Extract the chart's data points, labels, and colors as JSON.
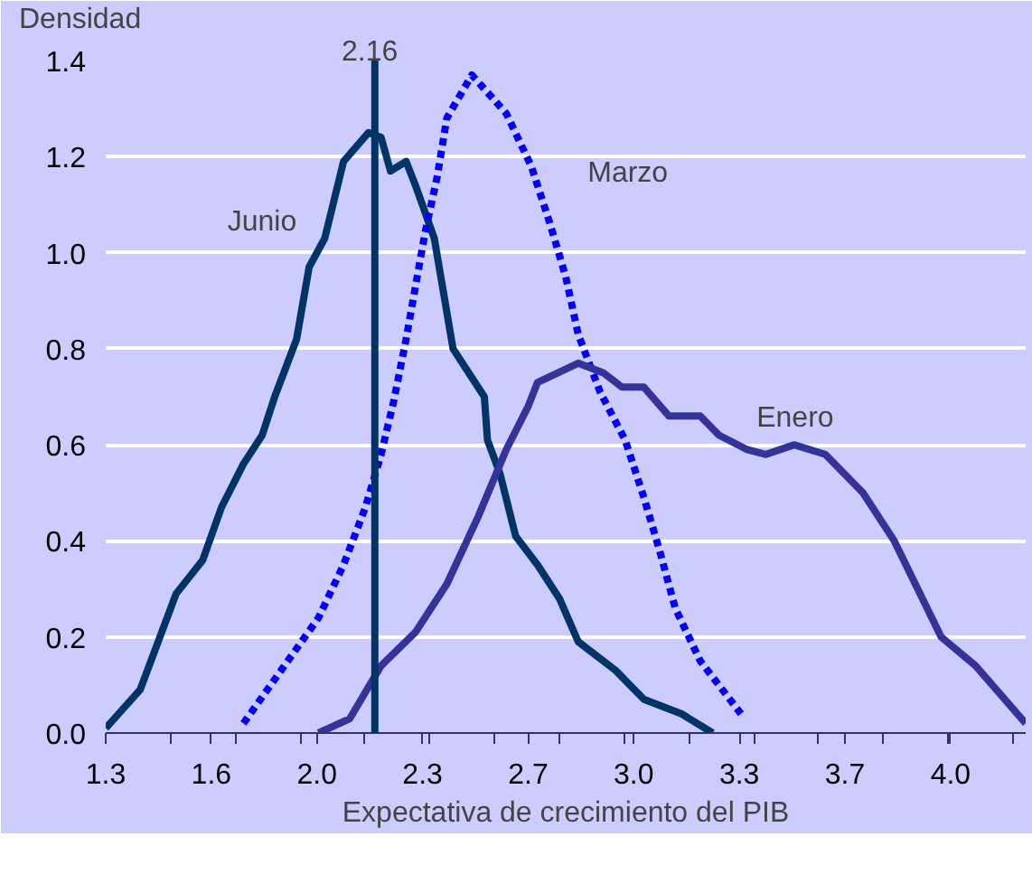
{
  "chart_data": {
    "type": "line",
    "ylabel": "Densidad",
    "xlabel": "Expectativa de crecimiento del PIB",
    "xlim": [
      1.3,
      4.24
    ],
    "ylim": [
      0,
      1.4
    ],
    "xticks": [
      {
        "value": 1.3,
        "label": "1.3"
      },
      {
        "value": 1.6375,
        "label": "1.6"
      },
      {
        "value": 1.975,
        "label": "2.0"
      },
      {
        "value": 2.3125,
        "label": "2.3"
      },
      {
        "value": 2.65,
        "label": "2.7"
      },
      {
        "value": 2.9875,
        "label": "3.0"
      },
      {
        "value": 3.325,
        "label": "3.3"
      },
      {
        "value": 3.6625,
        "label": "3.7"
      },
      {
        "value": 4.0,
        "label": "4.0"
      },
      {
        "value": 1.507,
        "label": null
      },
      {
        "value": 1.714,
        "label": null
      },
      {
        "value": 1.921,
        "label": null
      },
      {
        "value": 2.128,
        "label": null
      },
      {
        "value": 2.335,
        "label": null
      },
      {
        "value": 2.543,
        "label": null
      },
      {
        "value": 2.75,
        "label": null
      },
      {
        "value": 2.957,
        "label": null
      },
      {
        "value": 3.164,
        "label": null
      },
      {
        "value": 3.371,
        "label": null
      },
      {
        "value": 3.578,
        "label": null
      },
      {
        "value": 3.785,
        "label": null
      },
      {
        "value": 3.992,
        "label": null
      },
      {
        "value": 4.199,
        "label": null
      }
    ],
    "yticks": [
      {
        "value": 0,
        "label": "0.0"
      },
      0.2,
      0.4,
      0.6,
      0.8,
      {
        "value": 1.0,
        "label": "1.0"
      },
      1.2,
      1.4
    ],
    "grid": "y",
    "series": [
      {
        "name": "Junio",
        "color": "#003366",
        "line_style": "solid",
        "x": [
          1.3,
          1.41,
          1.525,
          1.61,
          1.67,
          1.74,
          1.8,
          1.84,
          1.91,
          1.95,
          2.0,
          2.06,
          2.14,
          2.18,
          2.21,
          2.26,
          2.29,
          2.35,
          2.41,
          2.47,
          2.51,
          2.52,
          2.56,
          2.61,
          2.68,
          2.75,
          2.81,
          2.93,
          3.02,
          3.14,
          3.24
        ],
        "values": [
          0.01,
          0.09,
          0.29,
          0.36,
          0.47,
          0.56,
          0.62,
          0.7,
          0.82,
          0.97,
          1.03,
          1.19,
          1.25,
          1.24,
          1.17,
          1.19,
          1.14,
          1.03,
          0.8,
          0.74,
          0.7,
          0.61,
          0.54,
          0.41,
          0.35,
          0.28,
          0.19,
          0.13,
          0.07,
          0.04,
          0.0
        ]
      },
      {
        "name": "Marzo",
        "color": "#0000ff",
        "line_style": "dashed",
        "x": [
          1.74,
          1.86,
          1.98,
          2.06,
          2.13,
          2.18,
          2.22,
          2.26,
          2.29,
          2.32,
          2.36,
          2.39,
          2.47,
          2.58,
          2.66,
          2.72,
          2.77,
          2.81,
          2.88,
          2.96,
          3.02,
          3.07,
          3.12,
          3.2,
          3.33
        ],
        "values": [
          0.02,
          0.13,
          0.24,
          0.35,
          0.47,
          0.58,
          0.69,
          0.82,
          0.93,
          1.04,
          1.16,
          1.28,
          1.37,
          1.29,
          1.18,
          1.06,
          0.95,
          0.83,
          0.71,
          0.61,
          0.49,
          0.38,
          0.26,
          0.15,
          0.04
        ]
      },
      {
        "name": "Enero",
        "color": "#333399",
        "line_style": "solid",
        "x": [
          1.98,
          2.08,
          2.18,
          2.29,
          2.39,
          2.49,
          2.58,
          2.65,
          2.68,
          2.81,
          2.89,
          2.95,
          3.02,
          3.1,
          3.2,
          3.26,
          3.35,
          3.41,
          3.5,
          3.6,
          3.72,
          3.82,
          3.91,
          3.97,
          4.08,
          4.24
        ],
        "values": [
          0.0,
          0.03,
          0.14,
          0.21,
          0.31,
          0.45,
          0.59,
          0.68,
          0.73,
          0.77,
          0.75,
          0.72,
          0.72,
          0.66,
          0.66,
          0.62,
          0.59,
          0.58,
          0.6,
          0.58,
          0.5,
          0.4,
          0.28,
          0.2,
          0.14,
          0.02
        ]
      }
    ],
    "ref_lines": [
      {
        "axis": "x",
        "value": 2.16,
        "label": "2.16",
        "color": "#003366"
      }
    ]
  }
}
